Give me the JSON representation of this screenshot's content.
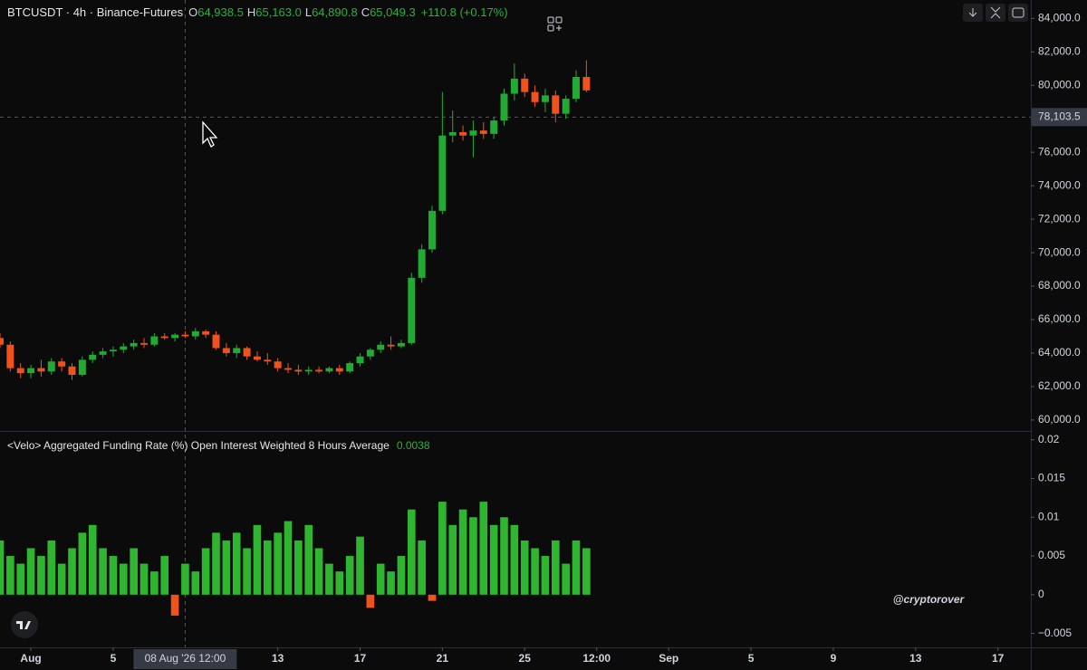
{
  "header": {
    "symbol": "BTCUSDT · 4h · Binance-Futures",
    "ohlc": [
      {
        "key": "O",
        "value": "64,938.5"
      },
      {
        "key": "H",
        "value": "65,163.0"
      },
      {
        "key": "L",
        "value": "64,890.8"
      },
      {
        "key": "C",
        "value": "65,049.3"
      }
    ],
    "change": "+110.8 (+0.17%)"
  },
  "watermark": "@cryptorover",
  "crosshair": {
    "x": {
      "value": 7.5,
      "label": "08 Aug '26 12:00"
    },
    "y": {
      "value": 78103.5,
      "label": "78,103.5"
    }
  },
  "chart_data": [
    {
      "type": "candlestick",
      "up_color": "#22ab33",
      "down_color": "#f0521c",
      "xlim": [
        -1.5,
        48.6
      ],
      "xticks": [
        {
          "value": 0,
          "label": "Aug"
        },
        {
          "value": 4,
          "label": "5"
        },
        {
          "value": 12,
          "label": "13"
        },
        {
          "value": 16,
          "label": "17"
        },
        {
          "value": 20,
          "label": "21"
        },
        {
          "value": 24,
          "label": "25"
        },
        {
          "value": 27.5,
          "label": "12:00"
        },
        {
          "value": 31,
          "label": "Sep"
        },
        {
          "value": 35,
          "label": "5"
        },
        {
          "value": 39,
          "label": "9"
        },
        {
          "value": 43,
          "label": "13"
        },
        {
          "value": 47,
          "label": "17"
        }
      ],
      "ylim": [
        59400,
        85100
      ],
      "yticks": [
        {
          "value": 60000,
          "label": "60,000.0"
        },
        {
          "value": 62000,
          "label": "62,000.0"
        },
        {
          "value": 64000,
          "label": "64,000.0"
        },
        {
          "value": 66000,
          "label": "66,000.0"
        },
        {
          "value": 68000,
          "label": "68,000.0"
        },
        {
          "value": 70000,
          "label": "70,000.0"
        },
        {
          "value": 72000,
          "label": "72,000.0"
        },
        {
          "value": 74000,
          "label": "74,000.0"
        },
        {
          "value": 76000,
          "label": "76,000.0"
        },
        {
          "value": 78000,
          "label": "78,000.0"
        },
        {
          "value": 80000,
          "label": "80,000.0"
        },
        {
          "value": 82000,
          "label": "82,000.0"
        },
        {
          "value": 84000,
          "label": "84,000.0"
        }
      ],
      "x": [
        -1.5,
        -1,
        -0.5,
        0,
        0.5,
        1,
        1.5,
        2,
        2.5,
        3,
        3.5,
        4,
        4.5,
        5,
        5.5,
        6,
        6.5,
        7,
        7.5,
        8,
        8.5,
        9,
        9.5,
        10,
        10.5,
        11,
        11.5,
        12,
        12.5,
        13,
        13.5,
        14,
        14.5,
        15,
        15.5,
        16,
        16.5,
        17,
        17.5,
        18,
        18.5,
        19,
        19.5,
        20,
        20.5,
        21,
        21.5,
        22,
        22.5,
        23,
        23.5,
        24,
        24.5,
        25,
        25.5,
        26,
        26.5,
        27
      ],
      "open": [
        64900,
        64500,
        63100,
        62800,
        63100,
        62900,
        63500,
        63200,
        62700,
        63600,
        63900,
        64100,
        64200,
        64400,
        64600,
        64500,
        65000,
        64900,
        65100,
        65000,
        65300,
        65100,
        64300,
        64000,
        64300,
        63800,
        63600,
        63500,
        63100,
        63000,
        62900,
        63000,
        62900,
        63100,
        62900,
        63400,
        63800,
        64200,
        64500,
        64400,
        64600,
        68500,
        70200,
        72500,
        77000,
        77200,
        77000,
        77300,
        77100,
        77900,
        79500,
        80400,
        79600,
        79000,
        79400,
        78300,
        79200,
        80500
      ],
      "high": [
        65200,
        64700,
        63400,
        63300,
        63600,
        63700,
        63700,
        63400,
        63800,
        64100,
        64300,
        64400,
        64600,
        64800,
        64900,
        65200,
        65200,
        65200,
        65300,
        65500,
        65400,
        65300,
        64600,
        64500,
        64400,
        64100,
        64000,
        63700,
        63400,
        63300,
        63200,
        63200,
        63200,
        63300,
        63500,
        64000,
        64300,
        64700,
        65000,
        64800,
        68800,
        70500,
        72800,
        79600,
        78500,
        77600,
        77900,
        77800,
        78100,
        79800,
        81300,
        80700,
        80000,
        79800,
        79700,
        79400,
        80900,
        81500
      ],
      "low": [
        64300,
        62900,
        62500,
        62500,
        62600,
        62700,
        62900,
        62400,
        62600,
        63400,
        63700,
        63800,
        64000,
        64200,
        64300,
        64400,
        64800,
        64700,
        64900,
        64800,
        64900,
        64200,
        63800,
        63700,
        63600,
        63500,
        63300,
        62900,
        62800,
        62700,
        62700,
        62800,
        62800,
        62700,
        62800,
        63200,
        63600,
        64000,
        64200,
        64300,
        64500,
        68200,
        70000,
        72300,
        76600,
        76700,
        75700,
        76800,
        76800,
        77600,
        79100,
        79300,
        78700,
        78400,
        77800,
        78000,
        79000,
        79600
      ],
      "close": [
        64500,
        63100,
        62800,
        63100,
        62900,
        63500,
        63200,
        62700,
        63600,
        63900,
        64100,
        64200,
        64400,
        64600,
        64500,
        65000,
        64900,
        65100,
        65000,
        65300,
        65100,
        64300,
        64000,
        64300,
        63800,
        63600,
        63500,
        63100,
        63000,
        62900,
        63000,
        62900,
        63100,
        62900,
        63400,
        63800,
        64200,
        64500,
        64400,
        64600,
        68500,
        70200,
        72500,
        77000,
        77200,
        77000,
        77300,
        77100,
        77900,
        79500,
        80400,
        79600,
        79000,
        79400,
        78300,
        79200,
        80500,
        79700
      ]
    },
    {
      "type": "bar",
      "title": "<Velo> Aggregated Funding Rate (%) Open Interest Weighted 8 Hours Average",
      "last_value": 0.0038,
      "up_color": "#2fb52f",
      "down_color": "#f0521c",
      "ylim": [
        -0.0068,
        0.0209
      ],
      "yticks": [
        {
          "value": -0.005,
          "label": "−0.005"
        },
        0,
        0.005,
        0.01,
        0.015,
        0.02
      ],
      "x": [
        -1.5,
        -1,
        -0.5,
        0,
        0.5,
        1,
        1.5,
        2,
        2.5,
        3,
        3.5,
        4,
        4.5,
        5,
        5.5,
        6,
        6.5,
        7,
        7.5,
        8,
        8.5,
        9,
        9.5,
        10,
        10.5,
        11,
        11.5,
        12,
        12.5,
        13,
        13.5,
        14,
        14.5,
        15,
        15.5,
        16,
        16.5,
        17,
        17.5,
        18,
        18.5,
        19,
        19.5,
        20,
        20.5,
        21,
        21.5,
        22,
        22.5,
        23,
        23.5,
        24,
        24.5,
        25,
        25.5,
        26,
        26.5,
        27
      ],
      "values": [
        0.007,
        0.005,
        0.004,
        0.006,
        0.005,
        0.007,
        0.004,
        0.006,
        0.008,
        0.009,
        0.006,
        0.005,
        0.004,
        0.006,
        0.004,
        0.003,
        0.005,
        -0.0027,
        0.004,
        0.003,
        0.006,
        0.008,
        0.007,
        0.008,
        0.006,
        0.009,
        0.007,
        0.008,
        0.0095,
        0.007,
        0.009,
        0.006,
        0.004,
        0.003,
        0.005,
        0.0075,
        -0.0017,
        0.004,
        0.003,
        0.005,
        0.011,
        0.007,
        -0.0008,
        0.012,
        0.009,
        0.011,
        0.01,
        0.012,
        0.009,
        0.01,
        0.009,
        0.007,
        0.006,
        0.005,
        0.007,
        0.004,
        0.007,
        0.006
      ]
    }
  ]
}
